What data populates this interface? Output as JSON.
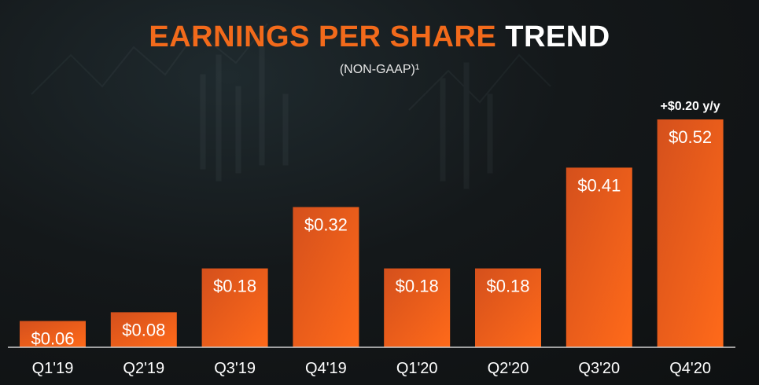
{
  "title_part1": "EARNINGS PER SHARE",
  "title_part2": "TREND",
  "subtitle": "(NON-GAAP)¹",
  "colors": {
    "bar_top": "#e2561a",
    "bar_bottom": "#ff6a1a",
    "title_accent": "#f26a1b",
    "axis": "#d0d0d0"
  },
  "chart_data": {
    "type": "bar",
    "title": "EARNINGS PER SHARE TREND",
    "subtitle": "(NON-GAAP)¹",
    "categories": [
      "Q1'19",
      "Q2'19",
      "Q3'19",
      "Q4'19",
      "Q1'20",
      "Q2'20",
      "Q3'20",
      "Q4'20"
    ],
    "values": [
      0.06,
      0.08,
      0.18,
      0.32,
      0.18,
      0.18,
      0.41,
      0.52
    ],
    "value_labels": [
      "$0.06",
      "$0.08",
      "$0.18",
      "$0.32",
      "$0.18",
      "$0.18",
      "$0.41",
      "$0.52"
    ],
    "annotation": {
      "category": "Q4'20",
      "text": "+$0.20 y/y"
    },
    "xlabel": "",
    "ylabel": "",
    "ylim": [
      0,
      0.52
    ],
    "grid": false,
    "legend": "none"
  }
}
